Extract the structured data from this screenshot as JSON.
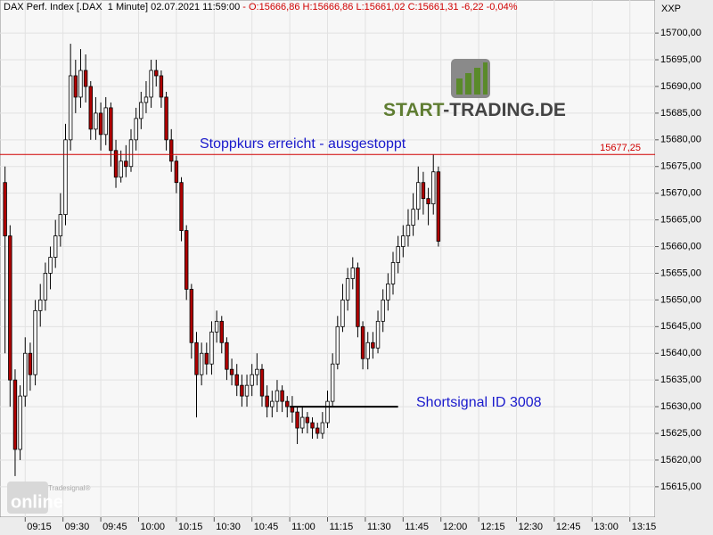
{
  "header": {
    "instrument": "DAX Perf. Index [.DAX  1 Minute] 02.07.2021 11:59:00",
    "quote": "- O:15666,86 H:15666,86 L:15661,02 C:15661,31 -6,22 -0,04%",
    "symbol": "XXP"
  },
  "chart_data": {
    "type": "candlestick",
    "x": [
      "09:07",
      "09:09",
      "09:11",
      "09:13",
      "09:15",
      "09:17",
      "09:19",
      "09:21",
      "09:23",
      "09:25",
      "09:27",
      "09:29",
      "09:31",
      "09:33",
      "09:35",
      "09:37",
      "09:39",
      "09:41",
      "09:43",
      "09:45",
      "09:47",
      "09:49",
      "09:51",
      "09:53",
      "09:55",
      "09:57",
      "09:59",
      "10:01",
      "10:03",
      "10:05",
      "10:07",
      "10:09",
      "10:11",
      "10:13",
      "10:15",
      "10:17",
      "10:19",
      "10:21",
      "10:23",
      "10:25",
      "10:27",
      "10:29",
      "10:31",
      "10:33",
      "10:35",
      "10:37",
      "10:39",
      "10:41",
      "10:43",
      "10:45",
      "10:47",
      "10:49",
      "10:51",
      "10:53",
      "10:55",
      "10:57",
      "10:59",
      "11:01",
      "11:03",
      "11:05",
      "11:07",
      "11:09",
      "11:11",
      "11:13",
      "11:15",
      "11:17",
      "11:19",
      "11:21",
      "11:23",
      "11:25",
      "11:27",
      "11:29",
      "11:31",
      "11:33",
      "11:35",
      "11:37",
      "11:39",
      "11:41",
      "11:43",
      "11:45",
      "11:47",
      "11:49",
      "11:51",
      "11:53",
      "11:55",
      "11:57",
      "11:59"
    ],
    "open": [
      15672,
      15662,
      15635,
      15622,
      15632,
      15640,
      15636,
      15648,
      15650,
      15655,
      15658,
      15662,
      15666,
      15680,
      15692,
      15688,
      15693,
      15690,
      15682,
      15685,
      15681,
      15686,
      15678,
      15673,
      15676,
      15675,
      15680,
      15684,
      15687,
      15688,
      15693,
      15692,
      15688,
      15680,
      15676,
      15672,
      15663,
      15652,
      15642,
      15636,
      15640,
      15638,
      15644,
      15646,
      15642,
      15637,
      15636,
      15634,
      15632,
      15634,
      15636,
      15637,
      15632,
      15630,
      15631,
      15633,
      15631,
      15630,
      15629,
      15626,
      15628,
      15627,
      15626,
      15625,
      15627,
      15631,
      15638,
      15645,
      15650,
      15654,
      15656,
      15645,
      15639,
      15642,
      15641,
      15646,
      15650,
      15653,
      15657,
      15660,
      15662,
      15664,
      15667,
      15672,
      15669,
      15668,
      15674
    ],
    "high": [
      15675,
      15664,
      15637,
      15634,
      15643,
      15642,
      15650,
      15653,
      15657,
      15660,
      15665,
      15670,
      15683,
      15698,
      15695,
      15697,
      15696,
      15691,
      15688,
      15687,
      15688,
      15687,
      15680,
      15678,
      15679,
      15682,
      15686,
      15689,
      15691,
      15695,
      15695,
      15693,
      15689,
      15682,
      15677,
      15673,
      15664,
      15653,
      15644,
      15642,
      15642,
      15646,
      15648,
      15647,
      15643,
      15639,
      15638,
      15636,
      15636,
      15638,
      15640,
      15638,
      15634,
      15633,
      15635,
      15634,
      15632,
      15632,
      15630,
      15630,
      15629,
      15628,
      15627,
      15629,
      15633,
      15640,
      15647,
      15653,
      15656,
      15658,
      15657,
      15646,
      15644,
      15644,
      15648,
      15652,
      15655,
      15659,
      15662,
      15664,
      15667,
      15670,
      15675,
      15674,
      15671,
      15677.3,
      15675
    ],
    "low": [
      15640,
      15630,
      15617,
      15620,
      15630,
      15633,
      15634,
      15645,
      15648,
      15652,
      15656,
      15660,
      15664,
      15678,
      15685,
      15686,
      15687,
      15680,
      15680,
      15678,
      15679,
      15675,
      15671,
      15672,
      15673,
      15674,
      15678,
      15682,
      15685,
      15686,
      15690,
      15686,
      15678,
      15674,
      15670,
      15661,
      15650,
      15639,
      15628,
      15634,
      15636,
      15636,
      15642,
      15640,
      15635,
      15634,
      15632,
      15630,
      15630,
      15632,
      15634,
      15630,
      15628,
      15628,
      15629,
      15629,
      15628,
      15627,
      15623,
      15625,
      15625,
      15624,
      15624,
      15624,
      15626,
      15630,
      15637,
      15644,
      15648,
      15652,
      15643,
      15637,
      15637,
      15639,
      15640,
      15644,
      15648,
      15651,
      15655,
      15658,
      15660,
      15662,
      15665,
      15666,
      15664,
      15666,
      15660
    ],
    "close": [
      15662,
      15635,
      15622,
      15632,
      15640,
      15636,
      15648,
      15650,
      15655,
      15658,
      15662,
      15666,
      15680,
      15692,
      15688,
      15693,
      15690,
      15682,
      15685,
      15681,
      15686,
      15678,
      15673,
      15676,
      15675,
      15680,
      15684,
      15687,
      15688,
      15693,
      15692,
      15688,
      15680,
      15676,
      15672,
      15663,
      15652,
      15642,
      15636,
      15640,
      15638,
      15644,
      15646,
      15642,
      15637,
      15636,
      15634,
      15632,
      15634,
      15636,
      15637,
      15632,
      15630,
      15631,
      15633,
      15631,
      15630,
      15629,
      15626,
      15628,
      15627,
      15626,
      15625,
      15627,
      15631,
      15638,
      15645,
      15650,
      15654,
      15656,
      15645,
      15639,
      15642,
      15641,
      15646,
      15650,
      15653,
      15657,
      15660,
      15662,
      15664,
      15667,
      15672,
      15669,
      15668,
      15674,
      15661
    ],
    "xlim": [
      "09:05",
      "13:25"
    ],
    "xticks": [
      "09:15",
      "09:30",
      "09:45",
      "10:00",
      "10:15",
      "10:30",
      "10:45",
      "11:00",
      "11:15",
      "11:30",
      "11:45",
      "12:00",
      "12:15",
      "12:30",
      "12:45",
      "13:00",
      "13:15"
    ],
    "ylim": [
      15609.3,
      15706.2
    ],
    "yticks": [
      {
        "value": 15615,
        "label": "15615,00"
      },
      {
        "value": 15620,
        "label": "15620,00"
      },
      {
        "value": 15625,
        "label": "15625,00"
      },
      {
        "value": 15630,
        "label": "15630,00"
      },
      {
        "value": 15635,
        "label": "15635,00"
      },
      {
        "value": 15640,
        "label": "15640,00"
      },
      {
        "value": 15645,
        "label": "15645,00"
      },
      {
        "value": 15650,
        "label": "15650,00"
      },
      {
        "value": 15655,
        "label": "15655,00"
      },
      {
        "value": 15660,
        "label": "15660,00"
      },
      {
        "value": 15665,
        "label": "15665,00"
      },
      {
        "value": 15670,
        "label": "15670,00"
      },
      {
        "value": 15675,
        "label": "15675,00"
      },
      {
        "value": 15680,
        "label": "15680,00"
      },
      {
        "value": 15685,
        "label": "15685,00"
      },
      {
        "value": 15690,
        "label": "15690,00"
      },
      {
        "value": 15695,
        "label": "15695,00"
      },
      {
        "value": 15700,
        "label": "15700,00"
      }
    ],
    "grid": true,
    "up_color": "#ffffff",
    "down_color": "#b00000",
    "stop_line": {
      "value": 15677.25,
      "label": "15677,25",
      "color": "#d00000"
    },
    "signal_line": {
      "value": 15630,
      "from": "11:00",
      "to": "11:43",
      "color": "#000000"
    },
    "annotations": [
      "Stoppkurs erreicht - ausgestoppt",
      "Shortsignal ID 3008"
    ]
  },
  "branding": {
    "logo_start": "START",
    "logo_rest": "-TRADING.DE",
    "watermark_small": "Tradesignal®",
    "watermark": "online"
  }
}
